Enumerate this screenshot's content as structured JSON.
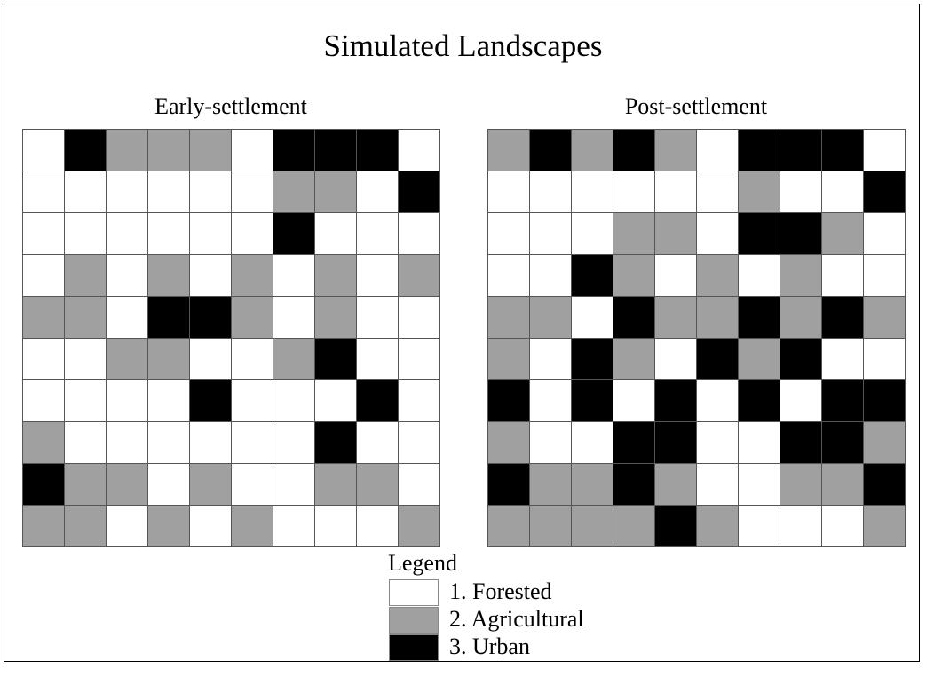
{
  "title": "Simulated Landscapes",
  "colors": {
    "1": "#ffffff",
    "2": "#a0a0a0",
    "3": "#000000"
  },
  "panels": [
    {
      "title": "Early-settlement",
      "grid": [
        [
          1,
          3,
          2,
          2,
          2,
          1,
          3,
          3,
          3,
          1
        ],
        [
          1,
          1,
          1,
          1,
          1,
          1,
          2,
          2,
          1,
          3
        ],
        [
          1,
          1,
          1,
          1,
          1,
          1,
          3,
          1,
          1,
          1
        ],
        [
          1,
          2,
          1,
          2,
          1,
          2,
          1,
          2,
          1,
          2
        ],
        [
          2,
          2,
          1,
          3,
          3,
          2,
          1,
          2,
          1,
          1
        ],
        [
          1,
          1,
          2,
          2,
          1,
          1,
          2,
          3,
          1,
          1
        ],
        [
          1,
          1,
          1,
          1,
          3,
          1,
          1,
          1,
          3,
          1
        ],
        [
          2,
          1,
          1,
          1,
          1,
          1,
          1,
          3,
          1,
          1
        ],
        [
          3,
          2,
          2,
          1,
          2,
          1,
          1,
          2,
          2,
          1
        ],
        [
          2,
          2,
          1,
          2,
          1,
          2,
          1,
          1,
          1,
          2
        ]
      ]
    },
    {
      "title": "Post-settlement",
      "grid": [
        [
          2,
          3,
          2,
          3,
          2,
          1,
          3,
          3,
          3,
          1
        ],
        [
          1,
          1,
          1,
          1,
          1,
          1,
          2,
          1,
          1,
          3
        ],
        [
          1,
          1,
          1,
          2,
          2,
          1,
          3,
          3,
          2,
          1
        ],
        [
          1,
          1,
          3,
          2,
          1,
          2,
          1,
          2,
          1,
          1
        ],
        [
          2,
          2,
          1,
          3,
          2,
          2,
          3,
          2,
          3,
          2
        ],
        [
          2,
          1,
          3,
          2,
          1,
          3,
          2,
          3,
          1,
          1
        ],
        [
          3,
          1,
          3,
          1,
          3,
          1,
          3,
          1,
          3,
          3
        ],
        [
          2,
          1,
          1,
          3,
          3,
          1,
          1,
          3,
          3,
          2
        ],
        [
          3,
          2,
          2,
          3,
          2,
          1,
          1,
          2,
          2,
          3
        ],
        [
          2,
          2,
          2,
          2,
          3,
          2,
          1,
          1,
          1,
          2
        ]
      ]
    }
  ],
  "legend": {
    "title": "Legend",
    "items": [
      {
        "label": "1. Forested",
        "value": 1
      },
      {
        "label": "2. Agricultural",
        "value": 2
      },
      {
        "label": "3. Urban",
        "value": 3
      }
    ]
  }
}
